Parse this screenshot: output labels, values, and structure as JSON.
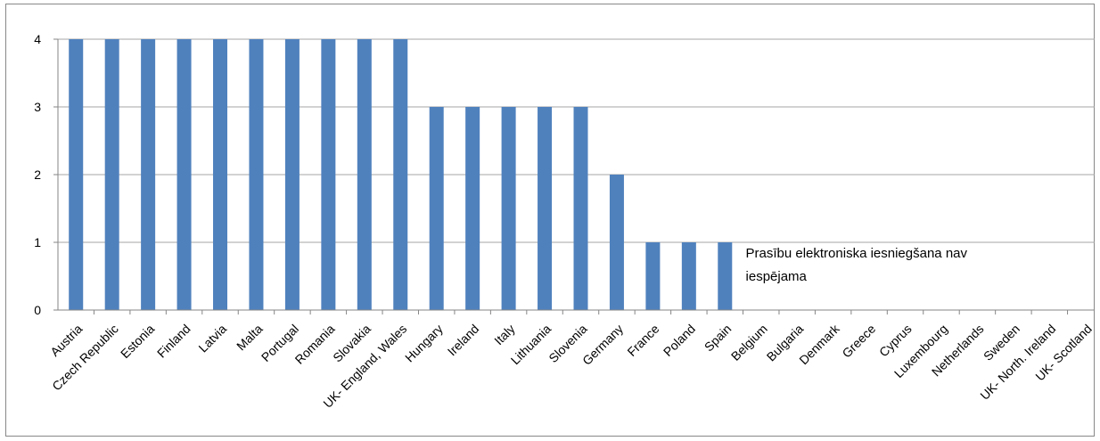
{
  "chart_data": {
    "type": "bar",
    "categories": [
      "Austria",
      "Czech Republic",
      "Estonia",
      "Finland",
      "Latvia",
      "Malta",
      "Portugal",
      "Romania",
      "Slovakia",
      "UK- England, Wales",
      "Hungary",
      "Ireland",
      "Italy",
      "Lithuania",
      "Slovenia",
      "Germany",
      "France",
      "Poland",
      "Spain",
      "Belgium",
      "Bulgaria",
      "Denmark",
      "Greece",
      "Cyprus",
      "Luxembourg",
      "Netherlands",
      "Sweden",
      "UK- North. Ireland",
      "UK- Scotland"
    ],
    "values": [
      4,
      4,
      4,
      4,
      4,
      4,
      4,
      4,
      4,
      4,
      3,
      3,
      3,
      3,
      3,
      2,
      1,
      1,
      1,
      0,
      0,
      0,
      0,
      0,
      0,
      0,
      0,
      0,
      0
    ],
    "yticks": [
      0,
      1,
      2,
      3,
      4
    ],
    "ylim": [
      0,
      4
    ],
    "grid": true,
    "bar_color": "#4f81bd",
    "grid_color": "#a6a6a6",
    "annotation": {
      "lines": [
        "Prasību elektroniska iesniegšana nav",
        "iespējama"
      ],
      "category": "Belgium",
      "y": 1
    }
  }
}
